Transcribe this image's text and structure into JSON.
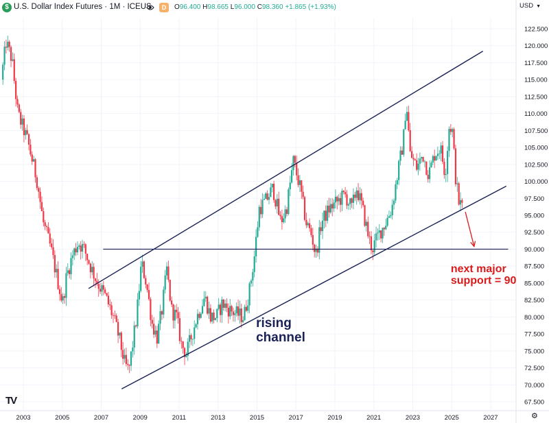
{
  "header": {
    "logo_glyph": "$",
    "instrument": "U.S. Dollar Index Futures · 1M · ICEUS",
    "badge": "D",
    "ohlc": [
      {
        "k": "O",
        "v": "96.400"
      },
      {
        "k": "H",
        "v": "98.665"
      },
      {
        "k": "L",
        "v": "96.000"
      },
      {
        "k": "C",
        "v": "98.360"
      }
    ],
    "change": "+1.865 (+1.93%)",
    "currency": "USD",
    "up_color": "#22ab94",
    "down_color": "#f23645"
  },
  "footer": {
    "tv_logo": "TV",
    "settings_icon": "gear-icon"
  },
  "chart_data": {
    "type": "candlestick",
    "interval": "1M",
    "title": "U.S. Dollar Index Futures",
    "y_ticks": [
      "122.500",
      "120.000",
      "117.500",
      "115.000",
      "112.500",
      "110.000",
      "107.500",
      "105.000",
      "102.500",
      "100.000",
      "97.500",
      "95.000",
      "92.500",
      "90.000",
      "87.500",
      "85.000",
      "82.500",
      "80.000",
      "77.500",
      "75.000",
      "72.500",
      "70.000",
      "67.500"
    ],
    "x_ticks": [
      "2003",
      "2005",
      "2007",
      "2009",
      "2011",
      "2013",
      "2015",
      "2017",
      "2019",
      "2021",
      "2023",
      "2025",
      "2027"
    ],
    "ylim": [
      66.5,
      124
    ],
    "xlim": [
      2001.85,
      2027.9
    ],
    "series_colors": {
      "up": "#22ab94",
      "down": "#f23645"
    },
    "price_path": [
      [
        2001.95,
        115
      ],
      [
        2002.2,
        120.5
      ],
      [
        2002.5,
        118
      ],
      [
        2002.8,
        110
      ],
      [
        2003.3,
        106
      ],
      [
        2003.8,
        100
      ],
      [
        2004.1,
        94
      ],
      [
        2004.5,
        90
      ],
      [
        2004.8,
        86
      ],
      [
        2005.1,
        82
      ],
      [
        2005.3,
        86
      ],
      [
        2005.6,
        89
      ],
      [
        2005.9,
        91
      ],
      [
        2006.2,
        90
      ],
      [
        2006.6,
        87
      ],
      [
        2006.9,
        85
      ],
      [
        2007.3,
        83
      ],
      [
        2007.7,
        80
      ],
      [
        2008.0,
        77
      ],
      [
        2008.3,
        73
      ],
      [
        2008.5,
        72
      ],
      [
        2008.9,
        80
      ],
      [
        2009.15,
        88
      ],
      [
        2009.4,
        85
      ],
      [
        2009.7,
        79
      ],
      [
        2009.95,
        77
      ],
      [
        2010.2,
        81
      ],
      [
        2010.45,
        87
      ],
      [
        2010.7,
        81
      ],
      [
        2010.95,
        80
      ],
      [
        2011.2,
        76
      ],
      [
        2011.45,
        74.5
      ],
      [
        2011.7,
        77
      ],
      [
        2012.0,
        80
      ],
      [
        2012.4,
        83
      ],
      [
        2012.7,
        80
      ],
      [
        2013.0,
        80
      ],
      [
        2013.3,
        82
      ],
      [
        2013.7,
        81
      ],
      [
        2014.0,
        80.5
      ],
      [
        2014.4,
        80
      ],
      [
        2014.7,
        84
      ],
      [
        2014.95,
        89
      ],
      [
        2015.2,
        96
      ],
      [
        2015.5,
        97
      ],
      [
        2015.9,
        99
      ],
      [
        2016.3,
        94
      ],
      [
        2016.6,
        96
      ],
      [
        2016.95,
        103
      ],
      [
        2017.3,
        99
      ],
      [
        2017.6,
        94
      ],
      [
        2017.9,
        92
      ],
      [
        2018.1,
        89
      ],
      [
        2018.4,
        94
      ],
      [
        2018.8,
        96
      ],
      [
        2019.2,
        97
      ],
      [
        2019.6,
        98
      ],
      [
        2019.95,
        96
      ],
      [
        2020.2,
        99
      ],
      [
        2020.5,
        96
      ],
      [
        2020.8,
        92
      ],
      [
        2021.0,
        90
      ],
      [
        2021.3,
        92
      ],
      [
        2021.7,
        94
      ],
      [
        2022.0,
        96
      ],
      [
        2022.3,
        101
      ],
      [
        2022.6,
        106
      ],
      [
        2022.75,
        112
      ],
      [
        2022.95,
        104
      ],
      [
        2023.3,
        102
      ],
      [
        2023.6,
        104
      ],
      [
        2023.9,
        101
      ],
      [
        2024.2,
        104
      ],
      [
        2024.5,
        105
      ],
      [
        2024.75,
        101
      ],
      [
        2024.95,
        108
      ],
      [
        2025.1,
        108
      ],
      [
        2025.3,
        100
      ],
      [
        2025.45,
        97
      ],
      [
        2025.55,
        96.5
      ]
    ],
    "horizontal_line": {
      "y": 90.0,
      "x_start": 2007.1,
      "x_end": 2027.9
    },
    "channel": {
      "upper": {
        "x1": 2006.35,
        "y1": 84.2,
        "x2": 2026.6,
        "y2": 119.2
      },
      "lower": {
        "x1": 2008.05,
        "y1": 69.4,
        "x2": 2027.8,
        "y2": 99.3
      }
    },
    "arrow": {
      "x1": 2025.7,
      "y1": 95.5,
      "x2": 2026.15,
      "y2": 90.4,
      "color": "#d81b1b"
    },
    "annotations": [
      {
        "lines": [
          "next major",
          "support = 90"
        ],
        "x": 2024.95,
        "y": 86.6,
        "color": "#d81b1b"
      },
      {
        "lines": [
          "rising",
          "channel"
        ],
        "x": 2014.95,
        "y": 78.5,
        "color": "#1a2255"
      }
    ]
  }
}
